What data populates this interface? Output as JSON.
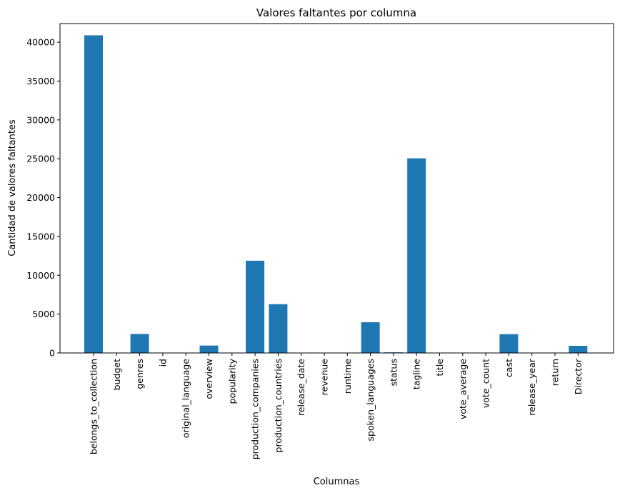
{
  "chart_data": {
    "type": "bar",
    "title": "Valores faltantes por columna",
    "xlabel": "Columnas",
    "ylabel": "Cantidad de valores faltantes",
    "ylim": [
      0,
      42400
    ],
    "yticks": [
      0,
      5000,
      10000,
      15000,
      20000,
      25000,
      30000,
      35000,
      40000
    ],
    "grid": false,
    "bar_color": "#1f77b4",
    "categories": [
      "belongs_to_collection",
      "budget",
      "genres",
      "id",
      "original_language",
      "overview",
      "popularity",
      "production_companies",
      "production_countries",
      "release_date",
      "revenue",
      "runtime",
      "spoken_languages",
      "status",
      "tagline",
      "title",
      "vote_average",
      "vote_count",
      "cast",
      "release_year",
      "return",
      "Director"
    ],
    "values": [
      40888,
      0,
      2442,
      0,
      11,
      954,
      0,
      11876,
      6282,
      0,
      0,
      0,
      3954,
      80,
      25053,
      0,
      0,
      0,
      2418,
      0,
      0,
      919
    ]
  }
}
